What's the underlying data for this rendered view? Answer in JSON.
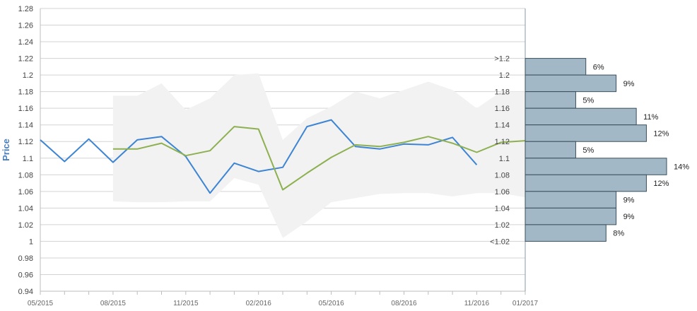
{
  "chart_data": {
    "type": "line",
    "ylabel": "Price",
    "xlabel": "",
    "ylim": [
      0.94,
      1.28
    ],
    "y_ticks": [
      "0.94",
      "0.96",
      "0.98",
      "1",
      "1.02",
      "1.04",
      "1.06",
      "1.08",
      "1.1",
      "1.12",
      "1.14",
      "1.16",
      "1.18",
      "1.2",
      "1.22",
      "1.24",
      "1.26",
      "1.28"
    ],
    "x_tick_labels": [
      "05/2015",
      "08/2015",
      "11/2015",
      "02/2016",
      "05/2016",
      "08/2016",
      "11/2016",
      "01/2017"
    ],
    "months": [
      "05/2015",
      "06/2015",
      "07/2015",
      "08/2015",
      "09/2015",
      "10/2015",
      "11/2015",
      "12/2015",
      "01/2016",
      "02/2016",
      "03/2016",
      "04/2016",
      "05/2016",
      "06/2016",
      "07/2016",
      "08/2016",
      "09/2016",
      "10/2016",
      "11/2016",
      "12/2016",
      "01/2017"
    ],
    "grid": true,
    "colors": {
      "actual": "#3d85d4",
      "forecast": "#8db050",
      "band": "#f2f2f2",
      "hist_fill": "#a2b8c6",
      "hist_stroke": "#3b4f5c",
      "grid": "#d3d3d3"
    },
    "series": [
      {
        "values": [
          1.122,
          1.096,
          1.123,
          1.095,
          1.122,
          1.126,
          1.102,
          1.058,
          1.094,
          1.084,
          1.089,
          1.138,
          1.146,
          1.114,
          1.111,
          1.117,
          1.116,
          1.125,
          1.092,
          null,
          null
        ]
      },
      {
        "values": [
          null,
          null,
          null,
          1.111,
          1.111,
          1.118,
          1.103,
          1.109,
          1.138,
          1.135,
          1.062,
          1.082,
          1.101,
          1.116,
          1.114,
          1.119,
          1.126,
          1.118,
          1.107,
          1.119,
          1.121
        ]
      }
    ],
    "band": {
      "start_month_index": 3,
      "upper": [
        1.175,
        1.175,
        1.19,
        1.158,
        1.172,
        1.2,
        1.202,
        1.122,
        1.148,
        1.162,
        1.18,
        1.172,
        1.182,
        1.192,
        1.182,
        1.16,
        1.18,
        1.18
      ],
      "lower": [
        1.048,
        1.047,
        1.047,
        1.048,
        1.048,
        1.076,
        1.068,
        1.004,
        1.024,
        1.047,
        1.052,
        1.057,
        1.058,
        1.058,
        1.054,
        1.058,
        1.058,
        1.053
      ]
    },
    "histogram": {
      "bins": [
        ">1.2",
        "1.2",
        "1.18",
        "1.16",
        "1.14",
        "1.12",
        "1.1",
        "1.08",
        "1.06",
        "1.04",
        "1.02",
        "<1.02"
      ],
      "percent_labels": [
        "6%",
        "9%",
        "5%",
        "11%",
        "12%",
        "5%",
        "14%",
        "12%",
        "9%",
        "9%",
        "8%"
      ],
      "percent_values": [
        6,
        9,
        5,
        11,
        12,
        5,
        14,
        12,
        9,
        9,
        8
      ]
    }
  }
}
